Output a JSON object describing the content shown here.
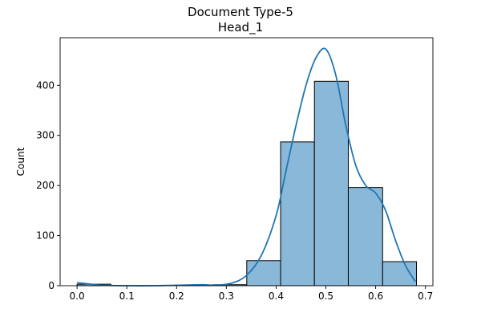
{
  "chart_data": {
    "type": "bar",
    "title": "Document Type-5",
    "subtitle": "Head_1",
    "xlabel": "",
    "ylabel": "Count",
    "xlim": [
      -0.034,
      0.715
    ],
    "ylim": [
      0,
      495
    ],
    "x_ticks": [
      "0.0",
      "0.1",
      "0.2",
      "0.3",
      "0.4",
      "0.5",
      "0.6",
      "0.7"
    ],
    "y_ticks": [
      "0",
      "100",
      "200",
      "300",
      "400"
    ],
    "bins": [
      {
        "x0": 0.0,
        "x1": 0.068,
        "count": 3
      },
      {
        "x0": 0.068,
        "x1": 0.136,
        "count": 0
      },
      {
        "x0": 0.136,
        "x1": 0.205,
        "count": 0
      },
      {
        "x0": 0.205,
        "x1": 0.273,
        "count": 1
      },
      {
        "x0": 0.273,
        "x1": 0.341,
        "count": 2
      },
      {
        "x0": 0.341,
        "x1": 0.409,
        "count": 50
      },
      {
        "x0": 0.409,
        "x1": 0.477,
        "count": 287
      },
      {
        "x0": 0.477,
        "x1": 0.545,
        "count": 408
      },
      {
        "x0": 0.545,
        "x1": 0.614,
        "count": 196
      },
      {
        "x0": 0.614,
        "x1": 0.682,
        "count": 48
      }
    ],
    "kde": {
      "x": [
        0.0,
        0.02,
        0.05,
        0.1,
        0.15,
        0.2,
        0.25,
        0.28,
        0.31,
        0.34,
        0.37,
        0.4,
        0.42,
        0.44,
        0.46,
        0.48,
        0.5,
        0.52,
        0.54,
        0.56,
        0.58,
        0.6,
        0.62,
        0.64,
        0.66,
        0.68
      ],
      "y": [
        6,
        4,
        1,
        0,
        0,
        1,
        2,
        1,
        5,
        20,
        60,
        140,
        230,
        320,
        400,
        455,
        472,
        420,
        320,
        240,
        200,
        185,
        150,
        90,
        40,
        8
      ]
    },
    "grid": false,
    "legend": "none",
    "colors": {
      "bar_fill": "#89b8d9",
      "bar_edge": "#000000",
      "kde_line": "#1f77b4"
    }
  }
}
